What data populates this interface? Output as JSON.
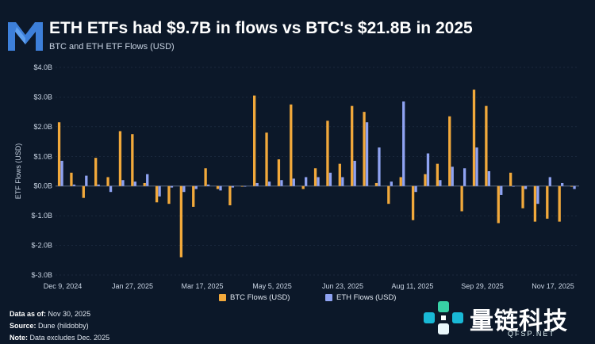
{
  "header": {
    "title": "ETH ETFs had $9.7B in flows vs BTC's $21.8B in 2025",
    "subtitle": "BTC and ETH ETF Flows (USD)"
  },
  "legend": {
    "btc_label": "BTC Flows (USD)",
    "eth_label": "ETH Flows (USD)"
  },
  "footer": {
    "data_as_of_label": "Data as of:",
    "data_as_of_value": "Nov 30, 2025",
    "source_label": "Source:",
    "source_value": "Dune (hildobby)",
    "note_label": "Note:",
    "note_value": "Data excludes Dec. 2025"
  },
  "watermark": {
    "text": "量链科技",
    "url": "QFSP.NET"
  },
  "colors": {
    "background": "#0c1829",
    "btc": "#f2a93b",
    "eth": "#8fa3f2",
    "gridline": "#2a3a52",
    "logo": "#3d7fd9"
  },
  "chart_data": {
    "type": "bar",
    "title": "ETH ETFs had $9.7B in flows vs BTC's $21.8B in 2025",
    "subtitle": "BTC and ETH ETF Flows (USD)",
    "xlabel": "",
    "ylabel": "ETF Flows (USD)",
    "ylim": [
      -3.0,
      4.0
    ],
    "yticks": [
      -3.0,
      -2.0,
      -1.0,
      0.0,
      1.0,
      2.0,
      3.0,
      4.0
    ],
    "ytick_labels": [
      "$-3.0B",
      "$-2.0B",
      "$-1.0B",
      "$0.0B",
      "$1.0B",
      "$2.0B",
      "$3.0B",
      "$4.0B"
    ],
    "xtick_labels": [
      "Dec 9, 2024",
      "Jan 27, 2025",
      "Mar 17, 2025",
      "May 5, 2025",
      "Jun 23, 2025",
      "Aug 11, 2025",
      "Sep 29, 2025",
      "Nov 17, 2025"
    ],
    "x_unit": "weeks starting Dec 9, 2024",
    "grid": false,
    "legend_position": "bottom-center",
    "series": [
      {
        "name": "BTC Flows (USD)",
        "values": [
          2.15,
          0.45,
          -0.4,
          0.95,
          0.3,
          1.85,
          1.75,
          0.1,
          -0.55,
          -0.6,
          -2.4,
          -0.7,
          0.6,
          -0.1,
          -0.65,
          0.0,
          3.05,
          1.8,
          0.9,
          2.75,
          -0.1,
          0.6,
          2.2,
          0.75,
          2.7,
          2.5,
          0.1,
          -0.6,
          0.3,
          -1.15,
          0.4,
          0.75,
          2.35,
          -0.85,
          3.25,
          2.7,
          -1.25,
          0.45,
          -0.75,
          -1.2,
          -1.1,
          -1.2,
          0.0
        ],
        "color": "#f2a93b"
      },
      {
        "name": "ETH Flows (USD)",
        "values": [
          0.85,
          0.05,
          0.35,
          0.05,
          -0.2,
          0.2,
          0.15,
          0.4,
          -0.35,
          -0.05,
          -0.2,
          -0.1,
          0.05,
          -0.15,
          -0.05,
          0.0,
          0.1,
          0.15,
          0.2,
          0.25,
          0.3,
          0.3,
          0.45,
          0.3,
          0.85,
          2.15,
          1.3,
          0.15,
          2.85,
          -0.2,
          1.1,
          0.2,
          0.65,
          0.6,
          1.3,
          0.5,
          -0.3,
          0.0,
          -0.1,
          -0.6,
          0.3,
          0.1,
          -0.1
        ],
        "color": "#8fa3f2"
      }
    ]
  }
}
